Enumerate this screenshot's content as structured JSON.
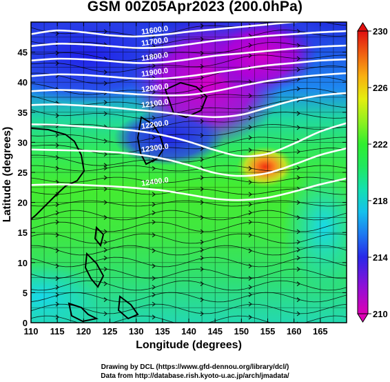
{
  "title": "GSM 00Z05Apr2023 (200.0hPa)",
  "credits": {
    "line1": "Drawing by DCL (https://www.gfd-dennou.org/library/dcl/)",
    "line2": "Data from http://database.rish.kyoto-u.ac.jp/arch/jmadata/"
  },
  "map": {
    "xlabel": "Longitude (degrees)",
    "ylabel": "Latitude  (degrees)",
    "lon_range": [
      110,
      170
    ],
    "lat_range": [
      0,
      50
    ],
    "lon_ticks": [
      "110",
      "115",
      "120",
      "125",
      "130",
      "135",
      "140",
      "145",
      "150",
      "155",
      "160",
      "165"
    ],
    "lat_ticks": [
      "0",
      "5",
      "10",
      "15",
      "20",
      "25",
      "30",
      "35",
      "40",
      "45"
    ],
    "contours": [
      {
        "label": "11600.0",
        "level": 11600,
        "lat": [
          48.0,
          48.6,
          48.3,
          47.8,
          47.6,
          47.9,
          48.4,
          48.8,
          49.2,
          49.6,
          50.0,
          50.2,
          50.4
        ]
      },
      {
        "label": "11700.0",
        "level": 11700,
        "lat": [
          46.0,
          46.4,
          46.3,
          46.0,
          45.7,
          45.8,
          46.3,
          46.9,
          47.3,
          47.7,
          48.0,
          48.3,
          48.5
        ]
      },
      {
        "label": "11800.0",
        "level": 11800,
        "lat": [
          43.6,
          43.9,
          43.8,
          43.5,
          43.2,
          43.3,
          43.8,
          44.4,
          44.8,
          45.2,
          45.6,
          45.9,
          46.1
        ]
      },
      {
        "label": "11900.0",
        "level": 11900,
        "lat": [
          41.0,
          41.3,
          41.2,
          40.9,
          40.6,
          40.6,
          41.0,
          41.6,
          42.2,
          42.8,
          43.2,
          43.6,
          43.8
        ]
      },
      {
        "label": "12000.0",
        "level": 12000,
        "lat": [
          38.5,
          38.7,
          38.6,
          38.3,
          38.0,
          37.8,
          37.9,
          38.5,
          39.4,
          40.2,
          40.8,
          41.2,
          41.5
        ]
      },
      {
        "label": "12100.0",
        "level": 12100,
        "lat": [
          36.2,
          36.3,
          36.1,
          35.8,
          35.4,
          35.0,
          34.5,
          34.2,
          34.6,
          35.8,
          37.0,
          37.8,
          38.2
        ]
      },
      {
        "label": "12200.0",
        "level": 12200,
        "lat": [
          33.0,
          32.9,
          32.6,
          32.3,
          31.9,
          31.2,
          30.1,
          28.7,
          27.7,
          28.1,
          29.8,
          31.8,
          33.2
        ]
      },
      {
        "label": "12300.0",
        "level": 12300,
        "lat": [
          28.8,
          28.7,
          28.6,
          28.4,
          28.0,
          27.3,
          26.2,
          24.9,
          24.4,
          24.9,
          26.3,
          27.9,
          29.0
        ]
      },
      {
        "label": "12400.0",
        "level": 12400,
        "lat": [
          22.9,
          23.0,
          22.9,
          22.7,
          22.4,
          22.0,
          21.3,
          20.6,
          20.4,
          20.8,
          21.8,
          23.0,
          24.0
        ]
      }
    ],
    "colorbar": {
      "ticks": [
        "230",
        "226",
        "222",
        "218",
        "214",
        "210"
      ],
      "min": 210,
      "max": 230
    }
  }
}
